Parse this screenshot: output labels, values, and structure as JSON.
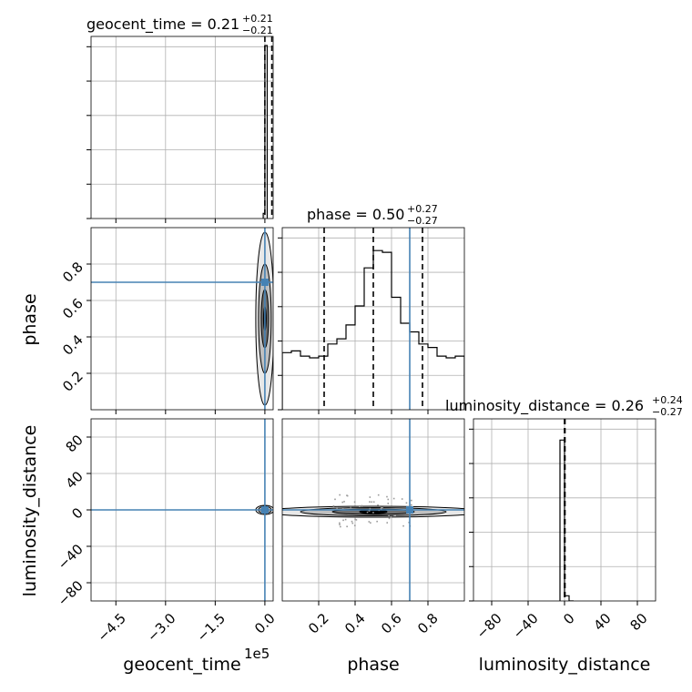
{
  "chart_data": {
    "type": "corner",
    "parameters": [
      "geocent_time",
      "phase",
      "luminosity_distance"
    ],
    "truths": [
      0,
      0.7,
      0
    ],
    "colors": {
      "truth": "#4682b4",
      "hist": "#000000",
      "grid": "#b0b0b0",
      "contour_fill": [
        "#e8e8e8",
        "#c0c0c0",
        "#707070",
        "#000000"
      ]
    },
    "grid": true,
    "titles": [
      {
        "param": "geocent_time",
        "label": "geocent_time = 0.21",
        "upper": "+0.21",
        "lower": "−0.21"
      },
      {
        "param": "phase",
        "label": "phase = 0.50",
        "upper": "+0.27",
        "lower": "−0.27"
      },
      {
        "param": "luminosity_distance",
        "label": "luminosity_distance = 0.26",
        "upper": "+0.24",
        "lower": "−0.27"
      }
    ],
    "axes": {
      "geocent_time": {
        "label": "geocent_time",
        "range": [
          -5.25,
          0.25
        ],
        "ticks": [
          -4.5,
          -3.0,
          -1.5,
          0.0
        ],
        "tick_labels": [
          "−4.5",
          "−3.0",
          "−1.5",
          "0.0"
        ],
        "offset_label": "1e5"
      },
      "phase": {
        "label": "phase",
        "range": [
          0,
          1
        ],
        "ticks": [
          0.2,
          0.4,
          0.6,
          0.8
        ],
        "tick_labels": [
          "0.2",
          "0.4",
          "0.6",
          "0.8"
        ]
      },
      "luminosity_distance": {
        "label": "luminosity_distance",
        "range": [
          -100,
          100
        ],
        "ticks": [
          -80,
          -40,
          0,
          40,
          80
        ],
        "tick_labels": [
          "−80",
          "−40",
          "0",
          "40",
          "80"
        ]
      }
    },
    "quantile_lines": {
      "geocent_time": [
        0.0,
        0.21,
        0.42
      ],
      "phase": [
        0.23,
        0.5,
        0.77
      ],
      "luminosity_distance": [
        -0.01,
        0.26,
        0.5
      ]
    },
    "histograms": {
      "geocent_time": {
        "edges": [
          -0.05,
          0.0,
          0.07
        ],
        "counts": [
          0.03,
          1.0
        ]
      },
      "phase": {
        "edges": [
          0,
          0.05,
          0.1,
          0.15,
          0.2,
          0.25,
          0.3,
          0.35,
          0.4,
          0.45,
          0.5,
          0.55,
          0.6,
          0.65,
          0.7,
          0.75,
          0.8,
          0.85,
          0.9,
          0.95,
          1.0
        ],
        "counts": [
          0.33,
          0.34,
          0.31,
          0.3,
          0.31,
          0.38,
          0.41,
          0.49,
          0.6,
          0.82,
          0.92,
          0.91,
          0.65,
          0.5,
          0.45,
          0.38,
          0.36,
          0.31,
          0.3,
          0.31
        ]
      },
      "luminosity_distance": {
        "edges": [
          -5,
          0,
          5,
          10
        ],
        "counts": [
          0.93,
          0.03,
          0.0
        ]
      }
    }
  }
}
